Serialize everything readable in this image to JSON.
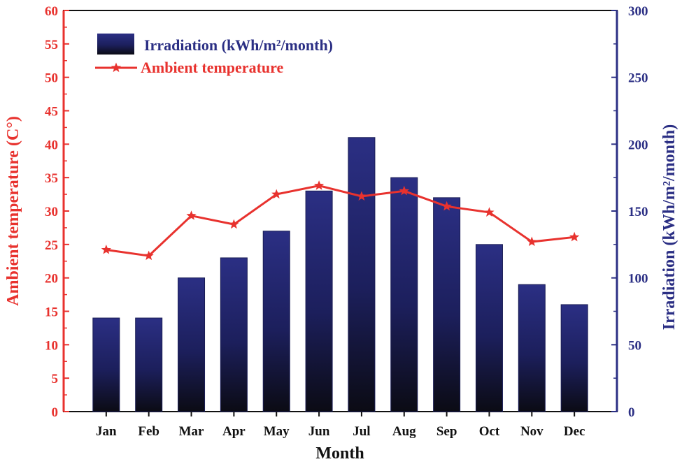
{
  "chart_data": {
    "type": "bar+line",
    "categories": [
      "Jan",
      "Feb",
      "Mar",
      "Apr",
      "May",
      "Jun",
      "Jul",
      "Aug",
      "Sep",
      "Oct",
      "Nov",
      "Dec"
    ],
    "series": [
      {
        "name": "Irradiation (kWh/m²/month)",
        "type": "bar",
        "axis": "right",
        "values": [
          70,
          70,
          100,
          115,
          135,
          165,
          205,
          175,
          160,
          125,
          95,
          80
        ]
      },
      {
        "name": "Ambient temperature",
        "type": "line",
        "axis": "left",
        "marker": "star",
        "values": [
          24.2,
          23.3,
          29.3,
          28.0,
          32.5,
          33.8,
          32.2,
          33.0,
          30.7,
          29.8,
          25.4,
          26.1
        ]
      }
    ],
    "xlabel": "Month",
    "ylabel_left": "Ambient temperature (C°)",
    "ylabel_right": "Irradiation (kWh/m²/month)",
    "ylim_left": [
      0,
      60
    ],
    "ylim_right": [
      0,
      300
    ],
    "yticks_left": [
      "0",
      "5",
      "10",
      "15",
      "20",
      "25",
      "30",
      "35",
      "40",
      "45",
      "50",
      "55",
      "60"
    ],
    "yticks_right": [
      "0",
      "50",
      "100",
      "150",
      "200",
      "250",
      "300"
    ],
    "legend_position": "top-left",
    "colors": {
      "bar_top": "#2b2f84",
      "bar_bottom": "#0b0b14",
      "line": "#e8322e",
      "left_axis": "#e8322e",
      "right_axis": "#2b2f84",
      "frame": "#111111"
    }
  }
}
